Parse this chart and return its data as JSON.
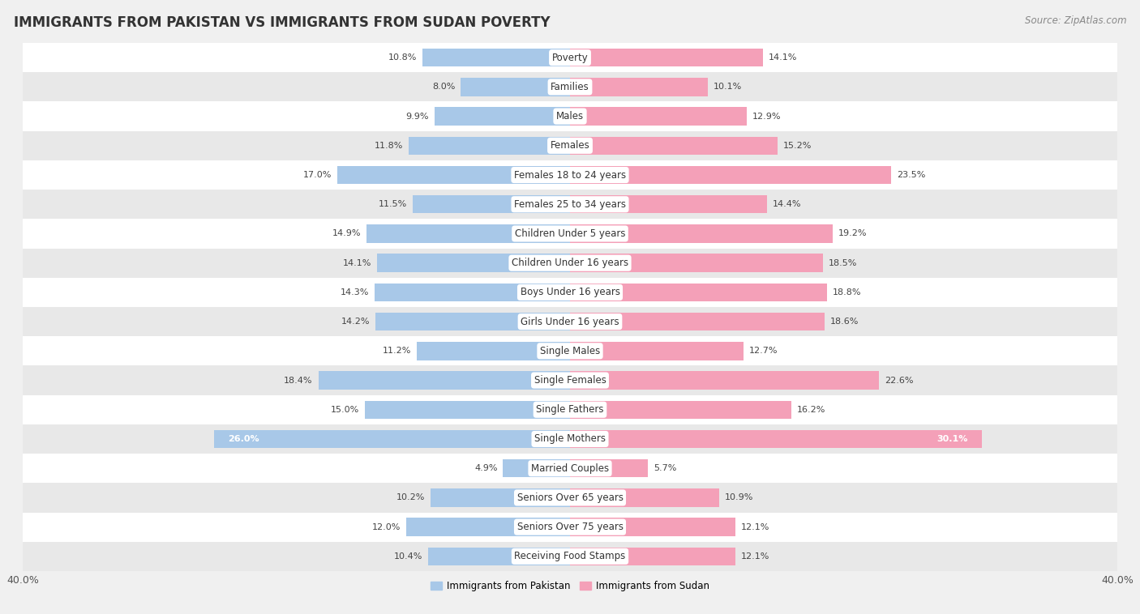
{
  "title": "IMMIGRANTS FROM PAKISTAN VS IMMIGRANTS FROM SUDAN POVERTY",
  "source": "Source: ZipAtlas.com",
  "categories": [
    "Poverty",
    "Families",
    "Males",
    "Females",
    "Females 18 to 24 years",
    "Females 25 to 34 years",
    "Children Under 5 years",
    "Children Under 16 years",
    "Boys Under 16 years",
    "Girls Under 16 years",
    "Single Males",
    "Single Females",
    "Single Fathers",
    "Single Mothers",
    "Married Couples",
    "Seniors Over 65 years",
    "Seniors Over 75 years",
    "Receiving Food Stamps"
  ],
  "pakistan_values": [
    10.8,
    8.0,
    9.9,
    11.8,
    17.0,
    11.5,
    14.9,
    14.1,
    14.3,
    14.2,
    11.2,
    18.4,
    15.0,
    26.0,
    4.9,
    10.2,
    12.0,
    10.4
  ],
  "sudan_values": [
    14.1,
    10.1,
    12.9,
    15.2,
    23.5,
    14.4,
    19.2,
    18.5,
    18.8,
    18.6,
    12.7,
    22.6,
    16.2,
    30.1,
    5.7,
    10.9,
    12.1,
    12.1
  ],
  "pakistan_color": "#a8c8e8",
  "sudan_color": "#f4a0b8",
  "background_color": "#f0f0f0",
  "row_white_color": "#ffffff",
  "row_gray_color": "#e8e8e8",
  "bar_height": 0.62,
  "xlim": 40,
  "legend_pakistan": "Immigrants from Pakistan",
  "legend_sudan": "Immigrants from Sudan",
  "title_fontsize": 12,
  "source_fontsize": 8.5,
  "label_fontsize": 8.5,
  "value_fontsize": 8.0,
  "axis_label_fontsize": 9,
  "single_mothers_pak_label_color": "#ffffff",
  "single_mothers_sud_label_color": "#ffffff"
}
